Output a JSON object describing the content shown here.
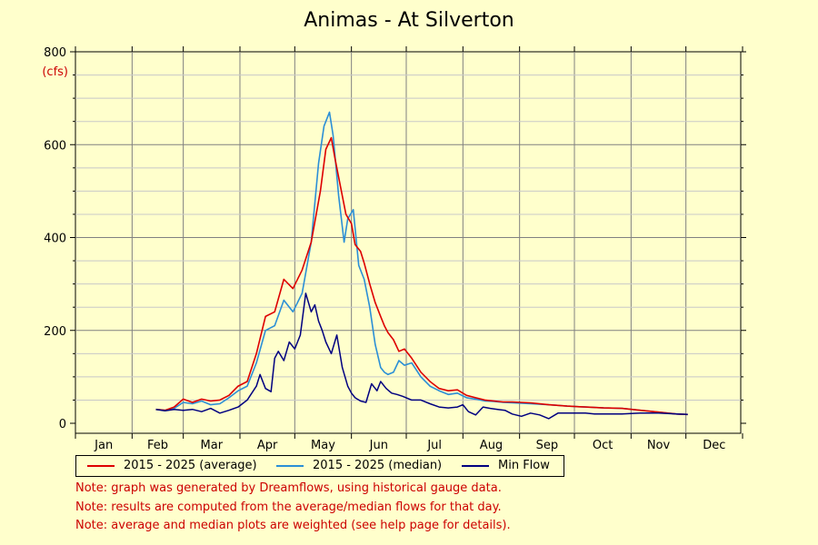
{
  "chart_data": {
    "type": "line",
    "title": "Animas - At Silverton",
    "ylabel": "(cfs)",
    "ylim": [
      0,
      800
    ],
    "yticks": [
      "0",
      "200",
      "400",
      "600",
      "800"
    ],
    "ytick_values": [
      0,
      200,
      400,
      600,
      800
    ],
    "x_months": [
      "Jan",
      "Feb",
      "Mar",
      "Apr",
      "May",
      "Jun",
      "Jul",
      "Aug",
      "Sep",
      "Oct",
      "Nov",
      "Dec"
    ],
    "xlim_day_of_year": [
      1,
      365
    ],
    "grid": true,
    "legend_placement": "bottom-left",
    "series": [
      {
        "name": "2015 - 2025 (average)",
        "color": "#dd0000",
        "x": [
          45,
          50,
          55,
          60,
          65,
          70,
          75,
          80,
          85,
          90,
          95,
          100,
          105,
          110,
          115,
          120,
          125,
          130,
          135,
          138,
          141,
          143,
          146,
          149,
          152,
          154,
          157,
          159,
          162,
          165,
          168,
          170,
          172,
          175,
          178,
          181,
          185,
          190,
          195,
          200,
          205,
          210,
          215,
          220,
          225,
          230,
          235,
          240,
          250,
          260,
          270,
          280,
          290,
          300,
          310,
          320,
          330,
          336
        ],
        "y": [
          30,
          28,
          35,
          52,
          45,
          52,
          48,
          50,
          60,
          80,
          90,
          150,
          230,
          240,
          310,
          290,
          330,
          390,
          500,
          590,
          615,
          570,
          510,
          450,
          430,
          385,
          370,
          345,
          300,
          260,
          230,
          210,
          195,
          180,
          155,
          160,
          140,
          110,
          90,
          75,
          70,
          72,
          60,
          55,
          50,
          48,
          46,
          46,
          44,
          40,
          37,
          35,
          33,
          32,
          28,
          24,
          20,
          19
        ]
      },
      {
        "name": "2015 - 2025 (median)",
        "color": "#2b8fd6",
        "x": [
          45,
          50,
          55,
          60,
          65,
          70,
          75,
          80,
          85,
          90,
          95,
          100,
          105,
          110,
          115,
          120,
          125,
          130,
          134,
          137,
          140,
          142,
          145,
          148,
          150,
          153,
          156,
          159,
          162,
          165,
          168,
          170,
          172,
          175,
          178,
          181,
          185,
          190,
          195,
          200,
          205,
          210,
          215,
          220,
          225,
          230,
          235,
          240,
          250,
          260,
          270,
          280,
          290,
          300,
          310,
          320,
          330,
          336
        ],
        "y": [
          30,
          28,
          32,
          45,
          42,
          48,
          40,
          42,
          55,
          70,
          80,
          130,
          200,
          210,
          265,
          240,
          280,
          390,
          560,
          640,
          670,
          620,
          490,
          390,
          440,
          460,
          340,
          310,
          250,
          170,
          120,
          110,
          105,
          110,
          135,
          125,
          130,
          100,
          80,
          70,
          62,
          65,
          55,
          52,
          48,
          47,
          45,
          44,
          42,
          40,
          37,
          35,
          33,
          32,
          28,
          24,
          20,
          19
        ]
      },
      {
        "name": "Min Flow",
        "color": "#000080",
        "x": [
          45,
          50,
          55,
          60,
          65,
          70,
          75,
          80,
          85,
          90,
          95,
          100,
          102,
          105,
          108,
          110,
          112,
          115,
          118,
          121,
          124,
          127,
          130,
          132,
          134,
          136,
          138,
          141,
          144,
          147,
          150,
          152,
          154,
          157,
          160,
          163,
          166,
          168,
          171,
          174,
          177,
          180,
          185,
          190,
          195,
          200,
          205,
          210,
          213,
          216,
          220,
          224,
          228,
          232,
          236,
          240,
          245,
          250,
          255,
          260,
          265,
          268,
          272,
          276,
          280,
          285,
          290,
          300,
          310,
          320,
          330,
          336
        ],
        "y": [
          30,
          27,
          30,
          28,
          30,
          25,
          32,
          22,
          28,
          35,
          50,
          80,
          105,
          75,
          68,
          140,
          155,
          135,
          175,
          160,
          190,
          280,
          240,
          255,
          220,
          200,
          175,
          150,
          190,
          120,
          80,
          65,
          55,
          48,
          45,
          85,
          70,
          90,
          75,
          65,
          62,
          58,
          50,
          50,
          42,
          35,
          33,
          35,
          40,
          25,
          18,
          35,
          32,
          30,
          28,
          20,
          15,
          22,
          18,
          10,
          22,
          22,
          22,
          22,
          22,
          20,
          20,
          20,
          22,
          22,
          20,
          19
        ]
      }
    ]
  },
  "legend": [
    {
      "label": "2015 - 2025 (average)",
      "color": "#dd0000"
    },
    {
      "label": "2015 - 2025 (median)",
      "color": "#2b8fd6"
    },
    {
      "label": "Min Flow",
      "color": "#000080"
    }
  ],
  "notes": [
    "Note: graph was generated by Dreamflows, using historical gauge data.",
    "Note: results are computed from the average/median flows for that day.",
    "Note: average and median plots are weighted (see help page for details)."
  ]
}
